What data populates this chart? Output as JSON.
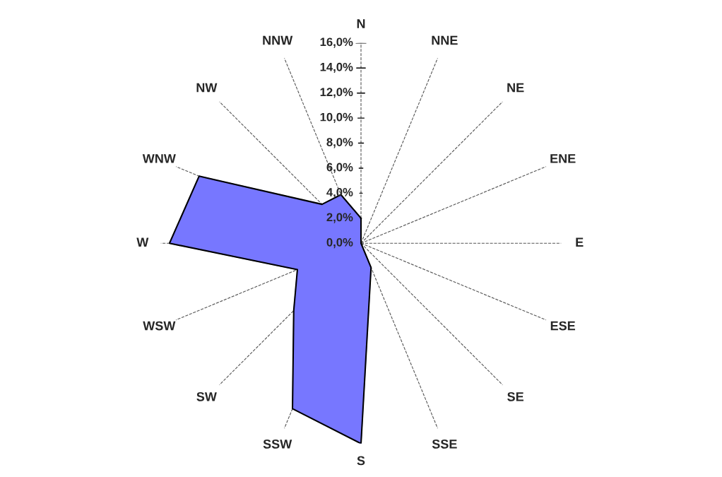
{
  "chart_data": {
    "type": "radar",
    "categories": [
      "N",
      "NNE",
      "NE",
      "ENE",
      "E",
      "ESE",
      "SE",
      "SSE",
      "S",
      "SSW",
      "SW",
      "WSW",
      "W",
      "WNW",
      "NW",
      "NNW"
    ],
    "series": [
      {
        "color": "#7777ff",
        "values": [
          2.0,
          0,
          0,
          0,
          0,
          0,
          0,
          2.1,
          16.0,
          14.3,
          7.6,
          5.5,
          15.3,
          14.0,
          4.4,
          4.2
        ]
      }
    ],
    "ylim": [
      0,
      16
    ],
    "yticks": [
      {
        "value": 0,
        "label": "0,0%"
      },
      {
        "value": 2,
        "label": "2,0%"
      },
      {
        "value": 4,
        "label": "4,0%"
      },
      {
        "value": 6,
        "label": "6,0%"
      },
      {
        "value": 8,
        "label": "8,0%"
      },
      {
        "value": 10,
        "label": "10,0%"
      },
      {
        "value": 12,
        "label": "12,0%"
      },
      {
        "value": 14,
        "label": "14,0%"
      },
      {
        "value": 16,
        "label": "16,0%"
      }
    ],
    "grid": "x"
  }
}
